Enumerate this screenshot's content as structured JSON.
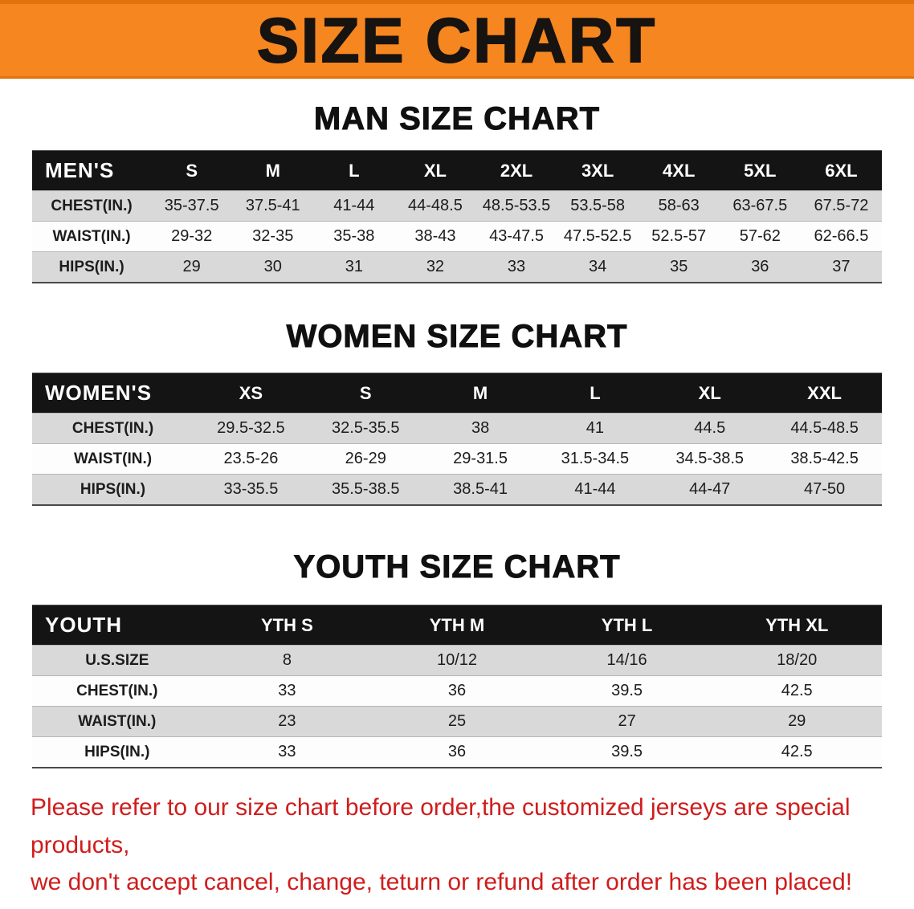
{
  "banner": {
    "title": "SIZE CHART",
    "bg_color": "#F6861F",
    "text_color": "#171310"
  },
  "sections": [
    {
      "heading": "MAN SIZE CHART",
      "table": {
        "header": [
          "MEN'S",
          "S",
          "M",
          "L",
          "XL",
          "2XL",
          "3XL",
          "4XL",
          "5XL",
          "6XL"
        ],
        "rows": [
          [
            "CHEST(IN.)",
            "35-37.5",
            "37.5-41",
            "41-44",
            "44-48.5",
            "48.5-53.5",
            "53.5-58",
            "58-63",
            "63-67.5",
            "67.5-72"
          ],
          [
            "WAIST(IN.)",
            "29-32",
            "32-35",
            "35-38",
            "38-43",
            "43-47.5",
            "47.5-52.5",
            "52.5-57",
            "57-62",
            "62-66.5"
          ],
          [
            "HIPS(IN.)",
            "29",
            "30",
            "31",
            "32",
            "33",
            "34",
            "35",
            "36",
            "37"
          ]
        ]
      }
    },
    {
      "heading": "WOMEN SIZE CHART",
      "table": {
        "header": [
          "WOMEN'S",
          "XS",
          "S",
          "M",
          "L",
          "XL",
          "XXL"
        ],
        "rows": [
          [
            "CHEST(IN.)",
            "29.5-32.5",
            "32.5-35.5",
            "38",
            "41",
            "44.5",
            "44.5-48.5"
          ],
          [
            "WAIST(IN.)",
            "23.5-26",
            "26-29",
            "29-31.5",
            "31.5-34.5",
            "34.5-38.5",
            "38.5-42.5"
          ],
          [
            "HIPS(IN.)",
            "33-35.5",
            "35.5-38.5",
            "38.5-41",
            "41-44",
            "44-47",
            "47-50"
          ]
        ]
      }
    },
    {
      "heading": "YOUTH SIZE CHART",
      "table": {
        "header": [
          "YOUTH",
          "YTH S",
          "YTH M",
          "YTH L",
          "YTH XL"
        ],
        "rows": [
          [
            "U.S.SIZE",
            "8",
            "10/12",
            "14/16",
            "18/20"
          ],
          [
            "CHEST(IN.)",
            "33",
            "36",
            "39.5",
            "42.5"
          ],
          [
            "WAIST(IN.)",
            "23",
            "25",
            "27",
            "29"
          ],
          [
            "HIPS(IN.)",
            "33",
            "36",
            "39.5",
            "42.5"
          ]
        ]
      }
    }
  ],
  "footer": {
    "line1": "Please refer to our size chart before order,the customized jerseys are special products,",
    "line2": "we don't accept cancel, change, teturn or refund after order has been placed!",
    "text_color": "#CF1D1D"
  },
  "colors": {
    "banner_bg": "#F6861F",
    "table_header_bg": "#141414",
    "table_header_text": "#FFFFFF",
    "row_alt_bg": "#D9D9D9"
  }
}
